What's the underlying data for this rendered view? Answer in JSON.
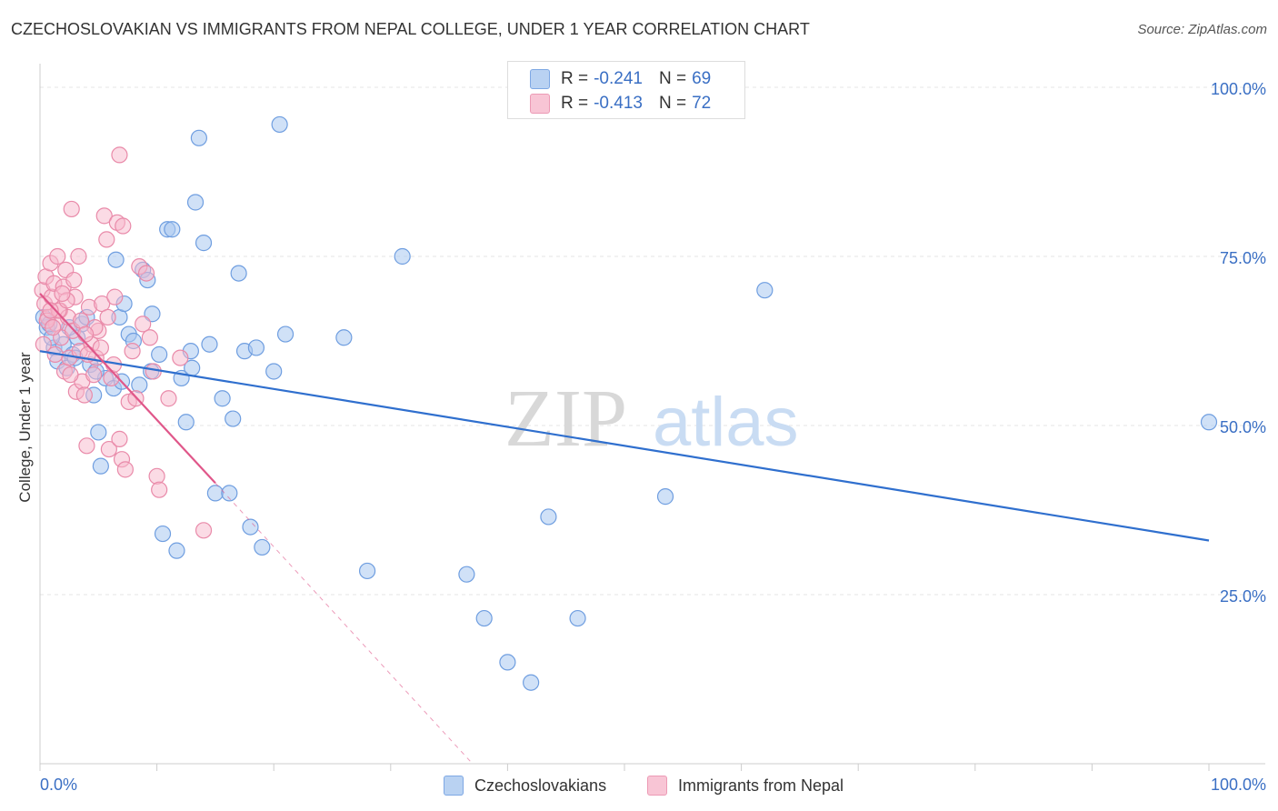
{
  "header": {
    "title": "CZECHOSLOVAKIAN VS IMMIGRANTS FROM NEPAL COLLEGE, UNDER 1 YEAR CORRELATION CHART",
    "source": "Source: ZipAtlas.com"
  },
  "watermark": {
    "zip": "ZIP",
    "atlas": "atlas"
  },
  "legend": {
    "series1": {
      "r_label": "R =",
      "r_value": "-0.241",
      "n_label": "N =",
      "n_value": "69"
    },
    "series2": {
      "r_label": "R =",
      "r_value": "-0.413",
      "n_label": "N =",
      "n_value": "72"
    },
    "bottom1": "Czechoslovakians",
    "bottom2": "Immigrants from Nepal"
  },
  "colors": {
    "blue_fill": "#a9c8f0",
    "blue_stroke": "#6f9ee0",
    "blue_line": "#2f6fce",
    "pink_fill": "#f7b8cc",
    "pink_stroke": "#e98aa9",
    "pink_line": "#e0578a",
    "tick_label": "#3a6fc4",
    "grid": "#e6e6e6"
  },
  "chart_data": {
    "type": "scatter",
    "title": "CZECHOSLOVAKIAN VS IMMIGRANTS FROM NEPAL COLLEGE, UNDER 1 YEAR CORRELATION CHART",
    "xlabel": "",
    "ylabel": "College, Under 1 year",
    "xlim": [
      0,
      100
    ],
    "ylim": [
      0,
      102
    ],
    "x_tick_labels": [
      "0.0%",
      "100.0%"
    ],
    "y_ticks": [
      25,
      50,
      75,
      100
    ],
    "y_tick_labels": [
      "25.0%",
      "50.0%",
      "75.0%",
      "100.0%"
    ],
    "grid": true,
    "legend_position": "top-center",
    "series": [
      {
        "name": "Czechoslovakians",
        "color": "blue",
        "trendline": {
          "x": [
            0,
            100
          ],
          "y": [
            61.0,
            33.0
          ],
          "dashed_extension": false
        },
        "points": [
          [
            0.3,
            66.0
          ],
          [
            0.6,
            64.5
          ],
          [
            1.2,
            61.5
          ],
          [
            1.5,
            59.5
          ],
          [
            2.0,
            62.0
          ],
          [
            2.3,
            58.5
          ],
          [
            2.8,
            60.5
          ],
          [
            3.2,
            63.0
          ],
          [
            3.6,
            65.0
          ],
          [
            4.0,
            66.0
          ],
          [
            4.3,
            59.0
          ],
          [
            4.6,
            54.5
          ],
          [
            5.0,
            49.0
          ],
          [
            5.2,
            44.0
          ],
          [
            5.6,
            57.0
          ],
          [
            6.3,
            55.5
          ],
          [
            6.5,
            74.5
          ],
          [
            6.8,
            66.0
          ],
          [
            7.2,
            68.0
          ],
          [
            7.6,
            63.5
          ],
          [
            8.0,
            62.5
          ],
          [
            8.5,
            56.0
          ],
          [
            8.8,
            73.0
          ],
          [
            9.2,
            71.5
          ],
          [
            9.6,
            66.5
          ],
          [
            10.2,
            60.5
          ],
          [
            10.5,
            34.0
          ],
          [
            10.9,
            79.0
          ],
          [
            11.3,
            79.0
          ],
          [
            11.7,
            31.5
          ],
          [
            12.1,
            57.0
          ],
          [
            12.5,
            50.5
          ],
          [
            12.9,
            61.0
          ],
          [
            13.3,
            83.0
          ],
          [
            13.6,
            92.5
          ],
          [
            14.0,
            77.0
          ],
          [
            14.5,
            62.0
          ],
          [
            15.0,
            40.0
          ],
          [
            15.6,
            54.0
          ],
          [
            16.2,
            40.0
          ],
          [
            16.5,
            51.0
          ],
          [
            17.0,
            72.5
          ],
          [
            17.5,
            61.0
          ],
          [
            18.0,
            35.0
          ],
          [
            18.5,
            61.5
          ],
          [
            19.0,
            32.0
          ],
          [
            20.0,
            58.0
          ],
          [
            20.5,
            94.5
          ],
          [
            26.0,
            63.0
          ],
          [
            28.0,
            28.5
          ],
          [
            31.0,
            75.0
          ],
          [
            36.5,
            28.0
          ],
          [
            38.0,
            21.5
          ],
          [
            40.0,
            15.0
          ],
          [
            42.0,
            12.0
          ],
          [
            43.5,
            36.5
          ],
          [
            46.0,
            21.5
          ],
          [
            53.5,
            39.5
          ],
          [
            62.0,
            70.0
          ],
          [
            100.0,
            50.5
          ],
          [
            7.0,
            56.5
          ],
          [
            9.5,
            58.0
          ],
          [
            3.0,
            60.0
          ],
          [
            1.0,
            63.0
          ],
          [
            2.5,
            64.5
          ],
          [
            4.8,
            58.0
          ],
          [
            13.0,
            58.5
          ],
          [
            21.0,
            63.5
          ],
          [
            0.8,
            65.0
          ]
        ]
      },
      {
        "name": "Immigrants from Nepal",
        "color": "pink",
        "trendline": {
          "x": [
            0,
            15
          ],
          "y": [
            69.5,
            41.5
          ],
          "dashed_extension": true,
          "dash_to": [
            37,
            0
          ]
        },
        "points": [
          [
            0.2,
            70.0
          ],
          [
            0.4,
            68.0
          ],
          [
            0.5,
            72.0
          ],
          [
            0.7,
            66.0
          ],
          [
            0.9,
            74.0
          ],
          [
            1.0,
            69.0
          ],
          [
            1.2,
            71.0
          ],
          [
            1.4,
            65.0
          ],
          [
            1.5,
            75.0
          ],
          [
            1.7,
            67.0
          ],
          [
            1.8,
            63.0
          ],
          [
            2.0,
            70.5
          ],
          [
            2.1,
            58.0
          ],
          [
            2.2,
            73.0
          ],
          [
            2.4,
            66.0
          ],
          [
            2.5,
            60.0
          ],
          [
            2.7,
            82.0
          ],
          [
            2.8,
            64.0
          ],
          [
            3.0,
            69.0
          ],
          [
            3.1,
            55.0
          ],
          [
            3.3,
            75.0
          ],
          [
            3.4,
            61.0
          ],
          [
            3.6,
            56.5
          ],
          [
            3.8,
            54.5
          ],
          [
            4.0,
            47.0
          ],
          [
            4.2,
            67.5
          ],
          [
            4.4,
            62.0
          ],
          [
            4.6,
            57.5
          ],
          [
            4.8,
            60.0
          ],
          [
            5.0,
            64.0
          ],
          [
            5.3,
            68.0
          ],
          [
            5.5,
            81.0
          ],
          [
            5.7,
            77.5
          ],
          [
            5.9,
            46.5
          ],
          [
            6.1,
            57.0
          ],
          [
            6.4,
            69.0
          ],
          [
            6.6,
            80.0
          ],
          [
            6.8,
            48.0
          ],
          [
            7.0,
            45.0
          ],
          [
            7.3,
            43.5
          ],
          [
            7.6,
            53.5
          ],
          [
            7.9,
            61.0
          ],
          [
            8.2,
            54.0
          ],
          [
            8.5,
            73.5
          ],
          [
            8.8,
            65.0
          ],
          [
            9.1,
            72.5
          ],
          [
            9.4,
            63.0
          ],
          [
            9.7,
            58.0
          ],
          [
            10.0,
            42.5
          ],
          [
            10.2,
            40.5
          ],
          [
            6.8,
            90.0
          ],
          [
            11.0,
            54.0
          ],
          [
            12.0,
            60.0
          ],
          [
            14.0,
            34.5
          ],
          [
            0.3,
            62.0
          ],
          [
            0.6,
            65.5
          ],
          [
            1.1,
            64.5
          ],
          [
            1.6,
            67.0
          ],
          [
            2.3,
            68.5
          ],
          [
            2.9,
            71.5
          ],
          [
            3.5,
            65.5
          ],
          [
            4.1,
            60.5
          ],
          [
            4.7,
            64.5
          ],
          [
            5.2,
            61.5
          ],
          [
            5.8,
            66.0
          ],
          [
            6.3,
            59.0
          ],
          [
            7.1,
            79.5
          ],
          [
            1.3,
            60.5
          ],
          [
            2.6,
            57.5
          ],
          [
            3.9,
            63.5
          ],
          [
            0.9,
            67.0
          ],
          [
            1.9,
            69.5
          ]
        ]
      }
    ]
  }
}
